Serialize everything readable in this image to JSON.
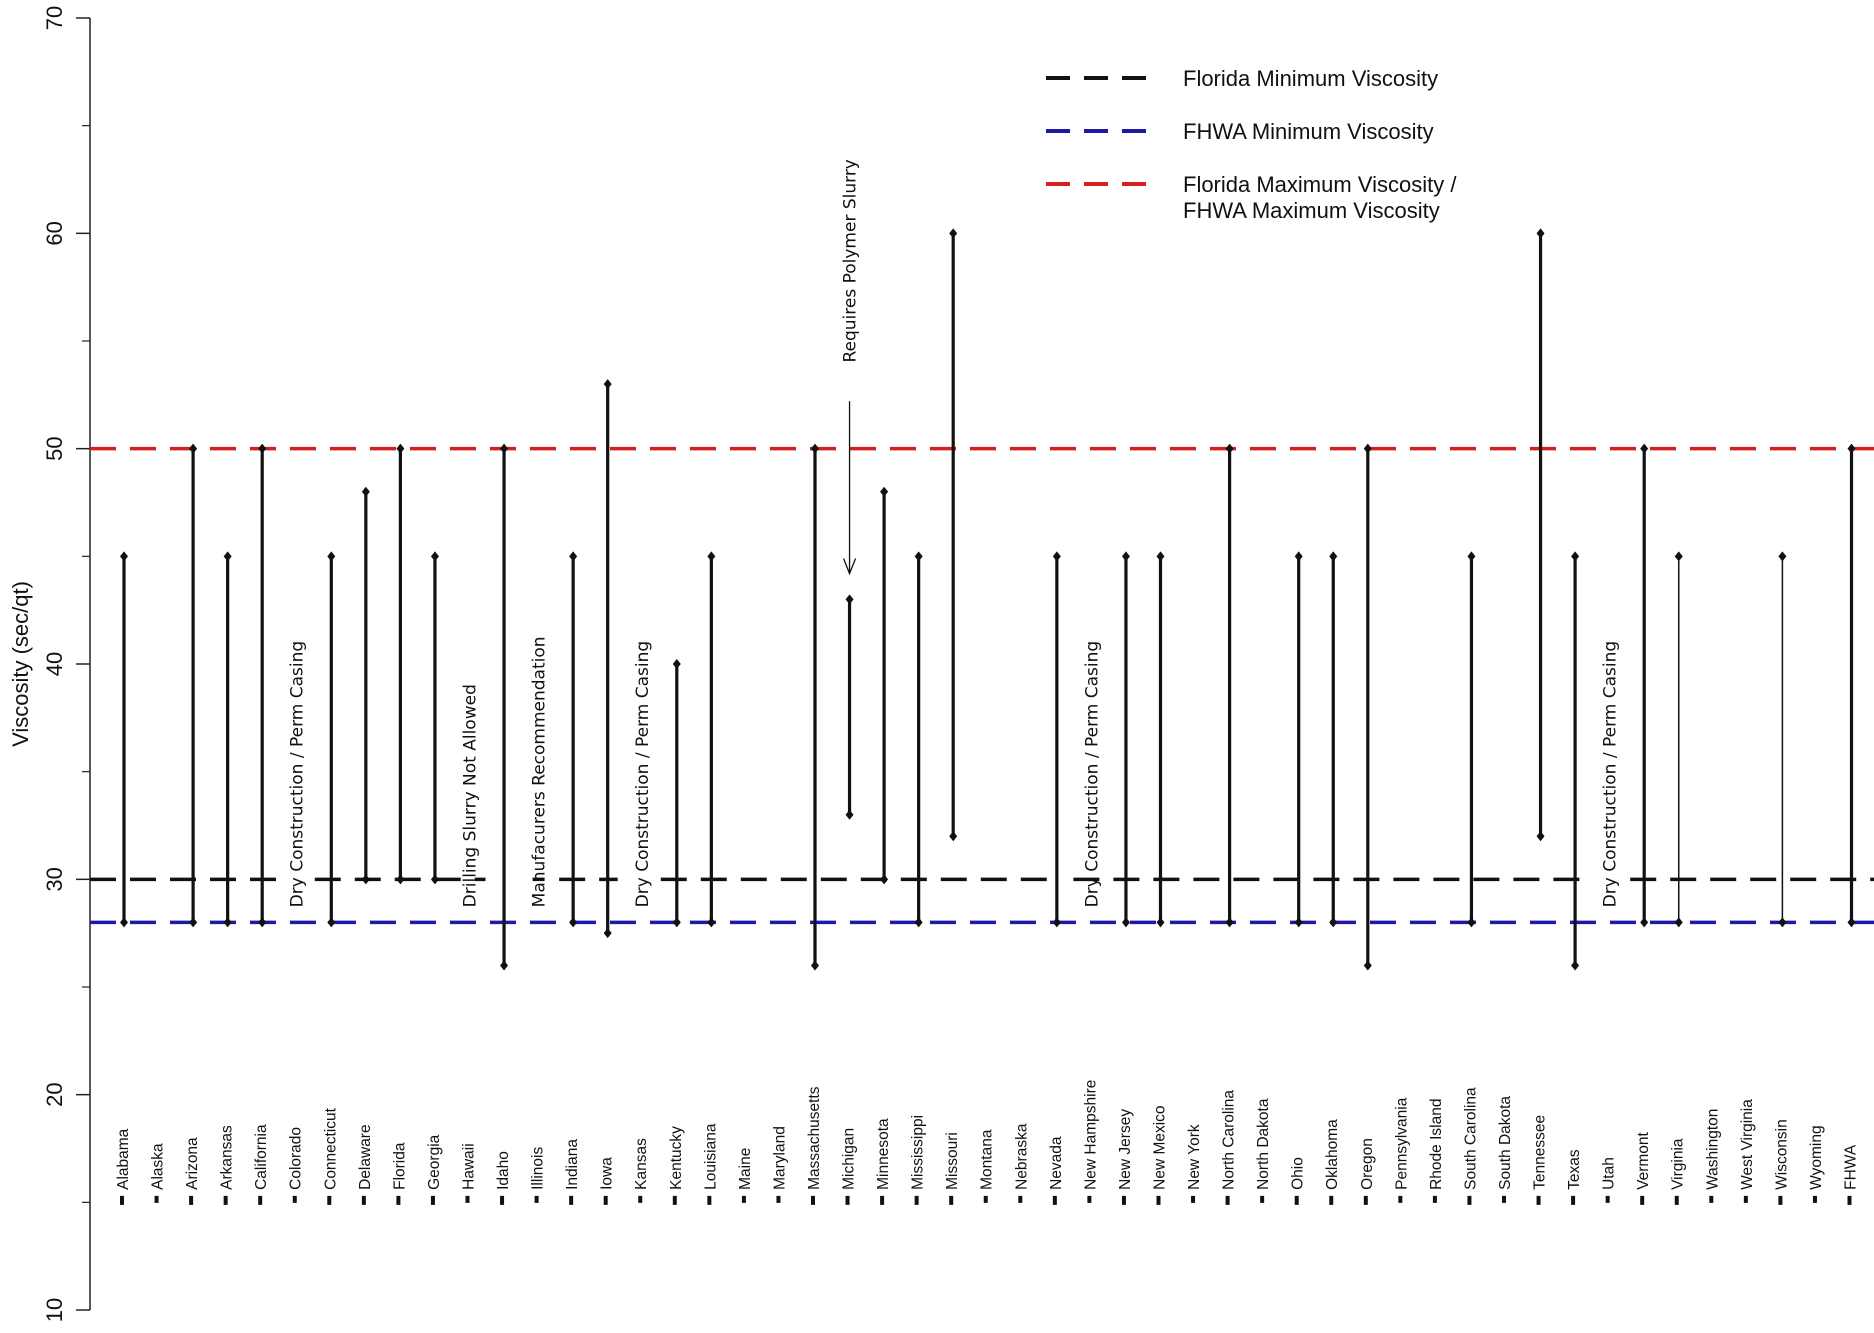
{
  "chart_data": {
    "type": "range",
    "title": "",
    "xlabel": "",
    "ylabel": "Viscosity (sec/qt)",
    "ylim": [
      10,
      70
    ],
    "yticks": [
      10,
      20,
      30,
      40,
      50,
      60,
      70
    ],
    "grid": false,
    "legend_position": "top-right",
    "legend": [
      {
        "label": "Florida Minimum Viscosity",
        "color": "#111111"
      },
      {
        "label": "FHWA Minimum Viscosity",
        "color": "#1a1aa6"
      },
      {
        "label": "Florida Maximum Viscosity /",
        "label2": "FHWA Maximum Viscosity",
        "color": "#d42020"
      }
    ],
    "reference_lines": {
      "florida_min": 30,
      "fhwa_min": 28,
      "max": 50
    },
    "states": [
      {
        "name": "Alabama",
        "low": 28,
        "high": 45
      },
      {
        "name": "Alaska",
        "low": null,
        "high": null
      },
      {
        "name": "Arizona",
        "low": 28,
        "high": 50
      },
      {
        "name": "Arkansas",
        "low": 28,
        "high": 45
      },
      {
        "name": "California",
        "low": 28,
        "high": 50
      },
      {
        "name": "Colorado",
        "low": null,
        "high": null
      },
      {
        "name": "Connecticut",
        "low": 28,
        "high": 45
      },
      {
        "name": "Delaware",
        "low": 30,
        "high": 48
      },
      {
        "name": "Florida",
        "low": 30,
        "high": 50
      },
      {
        "name": "Georgia",
        "low": 30,
        "high": 45
      },
      {
        "name": "Hawaii",
        "low": null,
        "high": null
      },
      {
        "name": "Idaho",
        "low": 26,
        "high": 50
      },
      {
        "name": "Illinois",
        "low": null,
        "high": null
      },
      {
        "name": "Indiana",
        "low": 28,
        "high": 45
      },
      {
        "name": "Iowa",
        "low": 27.5,
        "high": 53
      },
      {
        "name": "Kansas",
        "low": null,
        "high": null
      },
      {
        "name": "Kentucky",
        "low": 28,
        "high": 40
      },
      {
        "name": "Louisiana",
        "low": 28,
        "high": 45
      },
      {
        "name": "Maine",
        "low": null,
        "high": null
      },
      {
        "name": "Maryland",
        "low": null,
        "high": null
      },
      {
        "name": "Massachusetts",
        "low": 26,
        "high": 50
      },
      {
        "name": "Michigan",
        "low": 33,
        "high": 43
      },
      {
        "name": "Minnesota",
        "low": 30,
        "high": 48
      },
      {
        "name": "Mississippi",
        "low": 28,
        "high": 45
      },
      {
        "name": "Missouri",
        "low": 32,
        "high": 60
      },
      {
        "name": "Montana",
        "low": null,
        "high": null
      },
      {
        "name": "Nebraska",
        "low": null,
        "high": null
      },
      {
        "name": "Nevada",
        "low": 28,
        "high": 45
      },
      {
        "name": "New Hampshire",
        "low": null,
        "high": null
      },
      {
        "name": "New Jersey",
        "low": 28,
        "high": 45
      },
      {
        "name": "New Mexico",
        "low": 28,
        "high": 45
      },
      {
        "name": "New York",
        "low": null,
        "high": null
      },
      {
        "name": "North Carolina",
        "low": 28,
        "high": 50
      },
      {
        "name": "North Dakota",
        "low": null,
        "high": null
      },
      {
        "name": "Ohio",
        "low": 28,
        "high": 45
      },
      {
        "name": "Oklahoma",
        "low": 28,
        "high": 45
      },
      {
        "name": "Oregon",
        "low": 26,
        "high": 50
      },
      {
        "name": "Pennsylvania",
        "low": null,
        "high": null
      },
      {
        "name": "Rhode Island",
        "low": null,
        "high": null
      },
      {
        "name": "South Carolina",
        "low": 28,
        "high": 45
      },
      {
        "name": "South Dakota",
        "low": null,
        "high": null
      },
      {
        "name": "Tennessee",
        "low": 32,
        "high": 60
      },
      {
        "name": "Texas",
        "low": 26,
        "high": 45
      },
      {
        "name": "Utah",
        "low": null,
        "high": null
      },
      {
        "name": "Vermont",
        "low": 28,
        "high": 50
      },
      {
        "name": "Virginia",
        "low": 28,
        "high": 45
      },
      {
        "name": "Washington",
        "low": null,
        "high": null
      },
      {
        "name": "West Virginia",
        "low": null,
        "high": null
      },
      {
        "name": "Wisconsin",
        "low": 28,
        "high": 45
      },
      {
        "name": "Wyoming",
        "low": null,
        "high": null
      },
      {
        "name": "FHWA",
        "low": 28,
        "high": 50
      }
    ],
    "annotations": [
      {
        "text": "Dry Construction / Perm Casing",
        "state": "Colorado"
      },
      {
        "text": "Drilling Slurry Not Allowed",
        "state": "Hawaii"
      },
      {
        "text": "Manufacurers Recommendation",
        "state": "Illinois"
      },
      {
        "text": "Dry Construction / Perm Casing",
        "state": "Kansas"
      },
      {
        "text": "Requires Polymer Slurry",
        "state": "Michigan"
      },
      {
        "text": "Dry Construction / Perm Casing",
        "state": "New Hampshire"
      },
      {
        "text": "Dry Construction / Perm Casing",
        "state": "Utah"
      }
    ]
  }
}
